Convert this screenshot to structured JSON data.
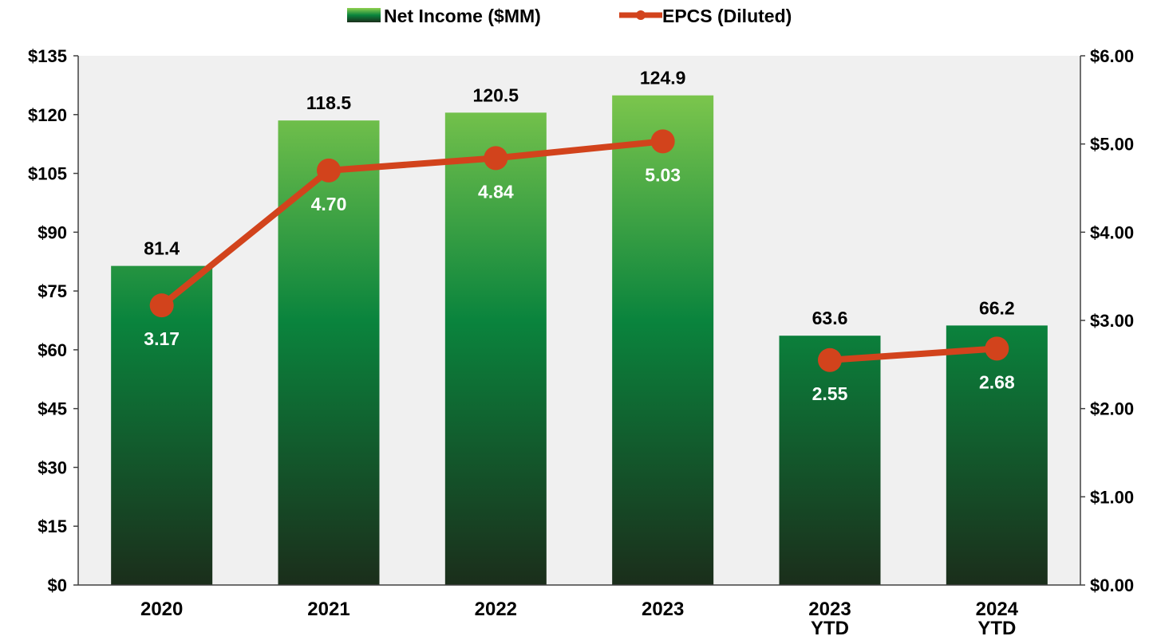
{
  "chart_data": {
    "type": "bar",
    "categories": [
      [
        "2020"
      ],
      [
        "2021"
      ],
      [
        "2022"
      ],
      [
        "2023"
      ],
      [
        "2023",
        "YTD"
      ],
      [
        "2024",
        "YTD"
      ]
    ],
    "series": [
      {
        "name": "Net Income ($MM)",
        "type": "bar",
        "axis": "left",
        "values": [
          81.4,
          118.5,
          120.5,
          124.9,
          63.6,
          66.2
        ],
        "labels": [
          "81.4",
          "118.5",
          "120.5",
          "124.9",
          "63.6",
          "66.2"
        ]
      },
      {
        "name": "EPCS (Diluted)",
        "type": "line",
        "axis": "right",
        "segments": [
          [
            0,
            1,
            2,
            3
          ],
          [
            4,
            5
          ]
        ],
        "values": [
          3.17,
          4.7,
          4.84,
          5.03,
          2.55,
          2.68
        ],
        "labels": [
          "3.17",
          "4.70",
          "4.84",
          "5.03",
          "2.55",
          "2.68"
        ]
      }
    ],
    "y_left": {
      "range": [
        0,
        135
      ],
      "ticks": [
        0,
        15,
        30,
        45,
        60,
        75,
        90,
        105,
        120,
        135
      ],
      "tick_labels": [
        "$0",
        "$15",
        "$30",
        "$45",
        "$60",
        "$75",
        "$90",
        "$105",
        "$120",
        "$135"
      ]
    },
    "y_right": {
      "range": [
        0,
        6
      ],
      "ticks": [
        0,
        1,
        2,
        3,
        4,
        5,
        6
      ],
      "tick_labels": [
        "$0.00",
        "$1.00",
        "$2.00",
        "$3.00",
        "$4.00",
        "$5.00",
        "$6.00"
      ]
    },
    "legend_position": "top-center",
    "grid": false,
    "colors": {
      "plot_background": "#f0f0f0",
      "bar_top": "#8fd14f",
      "bar_mid": "#0a843d",
      "bar_bottom": "#1b2e1b",
      "line": "#d2431c"
    }
  }
}
